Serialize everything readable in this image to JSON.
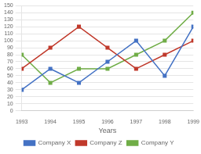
{
  "chart_data": {
    "type": "line",
    "xlabel": "Years",
    "categories": [
      "1993",
      "1994",
      "1995",
      "1996",
      "1997",
      "1998",
      "1999"
    ],
    "series": [
      {
        "name": "Company X",
        "color": "#4472C4",
        "values": [
          30,
          60,
          40,
          70,
          100,
          50,
          120
        ]
      },
      {
        "name": "Company Z",
        "color": "#C0392B",
        "values": [
          60,
          90,
          120,
          90,
          60,
          80,
          100
        ]
      },
      {
        "name": "Company Y",
        "color": "#70AD47",
        "values": [
          80,
          40,
          60,
          60,
          80,
          100,
          140
        ]
      }
    ],
    "marker": "square",
    "line_style": "solid",
    "ylim": [
      0,
      150
    ],
    "yticks": [
      0,
      10,
      20,
      30,
      40,
      50,
      60,
      70,
      80,
      90,
      100,
      110,
      120,
      130,
      140,
      150
    ],
    "grid": "y",
    "legend": "bottom"
  }
}
